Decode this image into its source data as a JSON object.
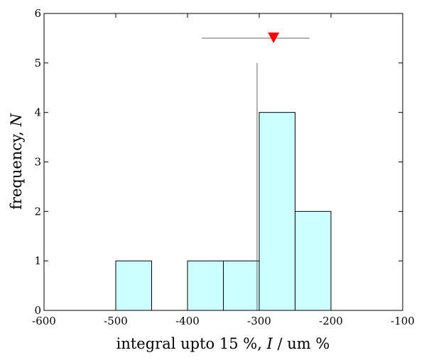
{
  "chart_data": {
    "type": "bar",
    "subtype": "histogram",
    "xlabel_prefix": "integral upto 15 %, ",
    "xlabel_var": "I",
    "xlabel_suffix": " / um %",
    "ylabel_prefix": "frequency, ",
    "ylabel_var": "N",
    "xlim": [
      -600,
      -100
    ],
    "ylim": [
      0,
      6
    ],
    "xticks": [
      -600,
      -500,
      -400,
      -300,
      -200,
      -100
    ],
    "yticks": [
      0,
      1,
      2,
      3,
      4,
      5,
      6
    ],
    "xtick_labels": [
      "-600",
      "-500",
      "-400",
      "-300",
      "-200",
      "-100"
    ],
    "ytick_labels": [
      "0",
      "1",
      "2",
      "3",
      "4",
      "5",
      "6"
    ],
    "bins": [
      {
        "x0": -500,
        "x1": -450,
        "count": 1
      },
      {
        "x0": -400,
        "x1": -350,
        "count": 1
      },
      {
        "x0": -350,
        "x1": -300,
        "count": 1
      },
      {
        "x0": -300,
        "x1": -250,
        "count": 4
      },
      {
        "x0": -250,
        "x1": -200,
        "count": 2
      }
    ],
    "bar_color": "#ccffff",
    "bar_edge_color": "#000000",
    "reference_line": {
      "x": -303,
      "y_top": 5
    },
    "marker": {
      "x": -280,
      "y": 5.5,
      "xerr_low": -380,
      "xerr_high": -230,
      "color": "#ff0000",
      "errbar_color": "#999999"
    },
    "grid": false,
    "legend": "none"
  }
}
